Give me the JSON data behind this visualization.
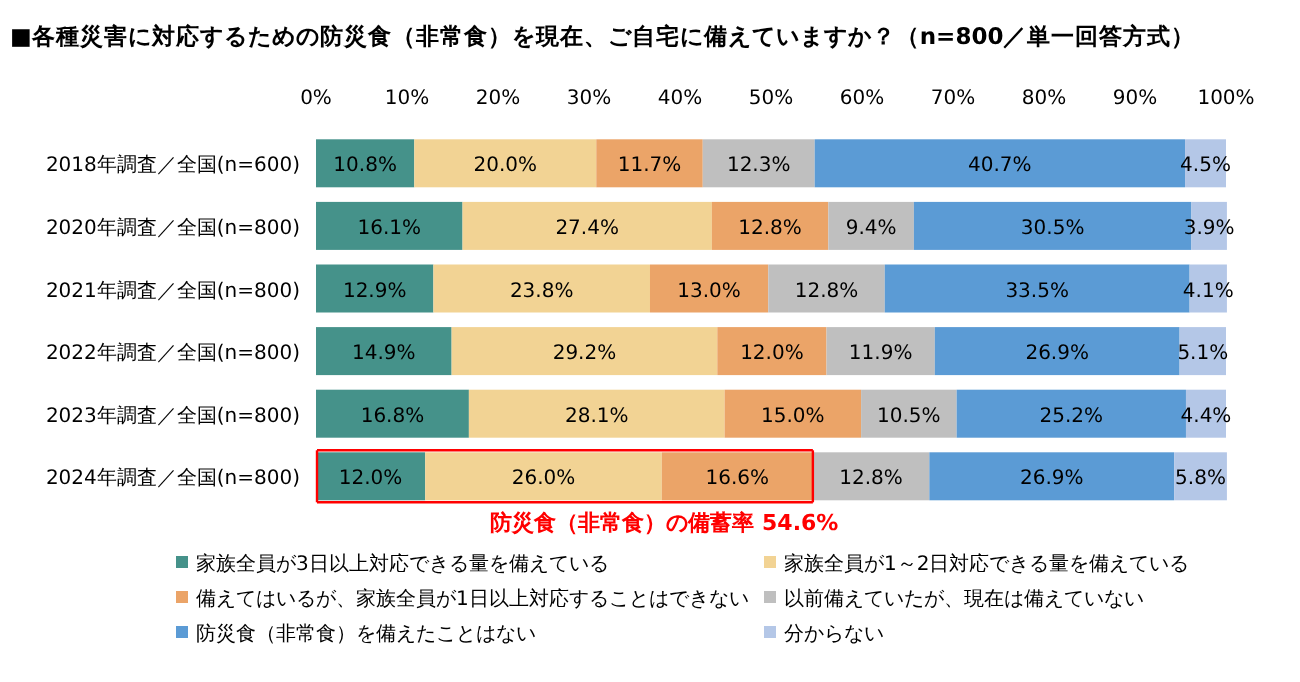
{
  "chart_data": {
    "type": "bar",
    "orientation": "horizontal",
    "stacked": true,
    "title": "■各種災害に対応するための防災食（非常食）を現在、ご自宅に備えていますか？（n=800／単一回答方式）",
    "categories": [
      "2018年調査／全国(n=600)",
      "2020年調査／全国(n=800)",
      "2021年調査／全国(n=800)",
      "2022年調査／全国(n=800)",
      "2023年調査／全国(n=800)",
      "2024年調査／全国(n=800)"
    ],
    "series": [
      {
        "name": "家族全員が3日以上対応できる量を備えている",
        "color": "#45928a",
        "values": [
          10.8,
          16.1,
          12.9,
          14.9,
          16.8,
          12.0
        ],
        "value_labels": [
          "10.8%",
          "16.1%",
          "12.9%",
          "14.9%",
          "16.8%",
          "12.0%"
        ]
      },
      {
        "name": "家族全員が1～2日対応できる量を備えている",
        "color": "#f2d394",
        "values": [
          20.0,
          27.4,
          23.8,
          29.2,
          28.1,
          26.0
        ],
        "value_labels": [
          "20.0%",
          "27.4%",
          "23.8%",
          "29.2%",
          "28.1%",
          "26.0%"
        ]
      },
      {
        "name": "備えてはいるが、家族全員が1日以上対応することはできない",
        "color": "#eba468",
        "values": [
          11.7,
          12.8,
          13.0,
          12.0,
          15.0,
          16.6
        ],
        "value_labels": [
          "11.7%",
          "12.8%",
          "13.0%",
          "12.0%",
          "15.0%",
          "16.6%"
        ]
      },
      {
        "name": "以前備えていたが、現在は備えていない",
        "color": "#bfbfbf",
        "values": [
          12.3,
          9.4,
          12.8,
          11.9,
          10.5,
          12.8
        ],
        "value_labels": [
          "12.3%",
          "9.4%",
          "12.8%",
          "11.9%",
          "10.5%",
          "12.8%"
        ]
      },
      {
        "name": "防災食（非常食）を備えたことはない",
        "color": "#5b9bd5",
        "values": [
          40.7,
          30.5,
          33.5,
          26.9,
          25.2,
          26.9
        ],
        "value_labels": [
          "40.7%",
          "30.5%",
          "33.5%",
          "26.9%",
          "25.2%",
          "26.9%"
        ]
      },
      {
        "name": "分からない",
        "color": "#b4c7e7",
        "values": [
          4.5,
          3.9,
          4.1,
          5.1,
          4.4,
          5.8
        ],
        "value_labels": [
          "4.5%",
          "3.9%",
          "4.1%",
          "5.1%",
          "4.4%",
          "5.8%"
        ]
      }
    ],
    "xlim": [
      0,
      100
    ],
    "xticks": [
      {
        "value": 0,
        "label": "0%"
      },
      {
        "value": 10,
        "label": "10%"
      },
      {
        "value": 20,
        "label": "20%"
      },
      {
        "value": 30,
        "label": "30%"
      },
      {
        "value": 40,
        "label": "40%"
      },
      {
        "value": 50,
        "label": "50%"
      },
      {
        "value": 60,
        "label": "60%"
      },
      {
        "value": 70,
        "label": "70%"
      },
      {
        "value": 80,
        "label": "80%"
      },
      {
        "value": 90,
        "label": "90%"
      },
      {
        "value": 100,
        "label": "100%"
      }
    ],
    "annotations": [
      {
        "text": "防災食（非常食）の備蓄率 54.6%",
        "x": 54.6,
        "y": "2024年調査／全国(n=800)"
      }
    ],
    "legend": "bottom"
  }
}
